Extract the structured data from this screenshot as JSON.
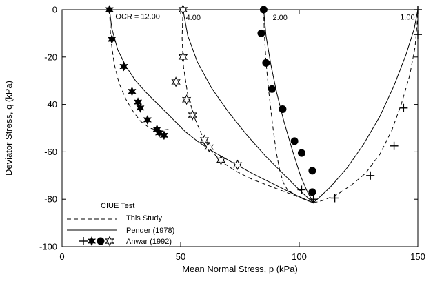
{
  "chart_data": {
    "type": "line",
    "title": "",
    "xlabel": "Mean Normal Stress, p (kPa)",
    "ylabel": "Deviator Stress, q (kPa)",
    "xlim": [
      0,
      150
    ],
    "ylim": [
      -100,
      0
    ],
    "xticks": [
      0,
      50,
      100,
      150
    ],
    "yticks": [
      0,
      -20,
      -40,
      -60,
      -80,
      -100
    ],
    "grid": false,
    "legend": {
      "position": "bottom-left",
      "title": "CIUE Test",
      "entries": [
        "This Study",
        "Pender (1978)",
        "Anwar (1992)"
      ]
    },
    "annotations": [
      {
        "text": "OCR = 12.00",
        "x": 22.5,
        "y": -2.8
      },
      {
        "text": "4.00",
        "x": 52.2,
        "y": -3.2
      },
      {
        "text": "2.00",
        "x": 88.8,
        "y": -3.2
      },
      {
        "text": "1.00",
        "x": 142.5,
        "y": -3.0
      }
    ],
    "series": [
      {
        "name": "This Study",
        "style": "dashed",
        "group": "OCR 12.00",
        "x": [
          20,
          20.5,
          22,
          24,
          27,
          30,
          33,
          37,
          41,
          45
        ],
        "y": [
          0,
          -12,
          -23,
          -31,
          -38,
          -43,
          -47,
          -50,
          -51,
          -50.5
        ]
      },
      {
        "name": "This Study",
        "style": "dashed",
        "group": "OCR 4.00",
        "x": [
          51,
          50.6,
          51.2,
          53,
          56,
          59,
          62.5,
          67,
          73,
          80,
          89,
          97,
          106
        ],
        "y": [
          0,
          -12,
          -24,
          -36,
          -46,
          -53,
          -59,
          -64,
          -68,
          -71.5,
          -75,
          -78,
          -81.5
        ]
      },
      {
        "name": "This Study",
        "style": "dashed",
        "group": "OCR 2.00",
        "x": [
          85,
          85.3,
          86,
          87.2,
          88.7,
          90.3,
          91.8,
          93.3,
          95,
          98,
          102,
          106
        ],
        "y": [
          0,
          -10,
          -22,
          -35,
          -48,
          -60,
          -68,
          -73,
          -76,
          -78,
          -80,
          -81.5
        ]
      },
      {
        "name": "This Study",
        "style": "dashed",
        "group": "OCR 1.00",
        "x": [
          106,
          110,
          116,
          122,
          128,
          134,
          139,
          143,
          146.5,
          148.8,
          149.7,
          150
        ],
        "y": [
          -81.5,
          -80.5,
          -78,
          -74,
          -69,
          -61,
          -51,
          -40,
          -28,
          -16,
          -6,
          0
        ]
      },
      {
        "name": "Pender (1978)",
        "style": "solid",
        "group": "OCR 12.00",
        "x": [
          20,
          21,
          23.5,
          27,
          31,
          35.5,
          40,
          44,
          48,
          52,
          57,
          63,
          71,
          80,
          90,
          99,
          106
        ],
        "y": [
          0,
          -8,
          -17,
          -24,
          -30,
          -35,
          -39.5,
          -43.5,
          -47.5,
          -51.5,
          -55.5,
          -59.5,
          -64,
          -69,
          -74,
          -78.5,
          -81.5
        ]
      },
      {
        "name": "Pender (1978)",
        "style": "solid",
        "group": "OCR 4.00",
        "x": [
          51,
          53,
          57,
          63,
          70,
          78,
          86,
          94,
          101,
          106
        ],
        "y": [
          0,
          -11,
          -22,
          -33,
          -43,
          -53,
          -62,
          -70,
          -77,
          -81.5
        ]
      },
      {
        "name": "Pender (1978)",
        "style": "solid",
        "group": "OCR 2.00",
        "x": [
          85,
          86,
          88,
          90.5,
          93.5,
          97,
          100.5,
          103.5,
          106
        ],
        "y": [
          0,
          -11,
          -23,
          -35,
          -47,
          -59,
          -70,
          -77,
          -81.5
        ]
      },
      {
        "name": "Pender (1978)",
        "style": "solid",
        "group": "OCR 1.00",
        "x": [
          106,
          113,
          120,
          127,
          134,
          140,
          145,
          148.5,
          150
        ],
        "y": [
          -81.5,
          -75,
          -67,
          -57,
          -45,
          -32,
          -19,
          -8,
          0
        ]
      },
      {
        "name": "Anwar (1992)",
        "style": "marker",
        "marker": "star-filled",
        "group": "OCR 12.00",
        "x": [
          20,
          21,
          26,
          29.5,
          32,
          33,
          36,
          40,
          41,
          43
        ],
        "y": [
          0,
          -12.5,
          -24,
          -34.5,
          -39,
          -41.5,
          -46.5,
          -50.5,
          -52,
          -53
        ]
      },
      {
        "name": "Anwar (1992)",
        "style": "marker",
        "marker": "star-open",
        "group": "OCR 4.00",
        "x": [
          51,
          51,
          48,
          52.5,
          55,
          60,
          62,
          67,
          74
        ],
        "y": [
          0,
          -20,
          -30.5,
          -38,
          -44.5,
          -55,
          -58,
          -63.5,
          -65.5
        ]
      },
      {
        "name": "Anwar (1992)",
        "style": "marker",
        "marker": "circle-filled",
        "group": "OCR 2.00",
        "x": [
          85,
          84,
          86,
          88.5,
          93,
          98,
          101,
          105.5,
          105.5
        ],
        "y": [
          0,
          -10,
          -22.5,
          -33.5,
          -42,
          -55.5,
          -60.5,
          -68,
          -77
        ]
      },
      {
        "name": "Anwar (1992)",
        "style": "marker",
        "marker": "plus",
        "group": "OCR 1.00",
        "x": [
          150,
          150,
          144,
          140,
          130,
          115,
          106,
          101
        ],
        "y": [
          0,
          -10.5,
          -41.5,
          -57.5,
          -70,
          -79.5,
          -80,
          -76
        ]
      }
    ]
  }
}
